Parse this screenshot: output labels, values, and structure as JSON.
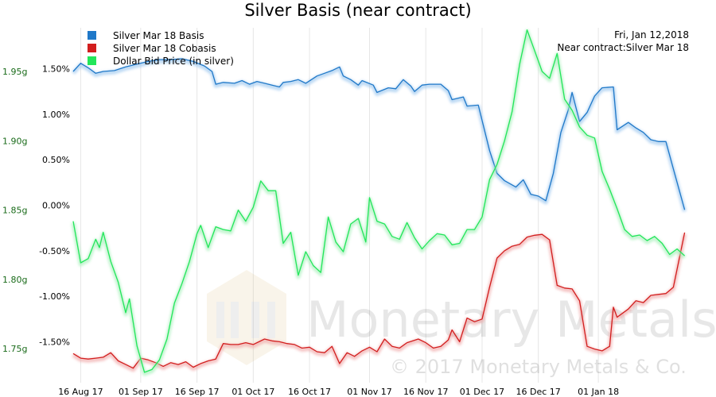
{
  "chart_data": {
    "type": "line",
    "title": "Silver Basis (near contract)",
    "xlabel": "",
    "ylabel_left": "",
    "ylabel_right": "",
    "x_start": "2017-08-14",
    "x_end": "2018-01-26",
    "x_ticks": [
      {
        "date": "2017-08-16",
        "label": "16 Aug 17"
      },
      {
        "date": "2017-09-01",
        "label": "01 Sep 17"
      },
      {
        "date": "2017-09-16",
        "label": "16 Sep 17"
      },
      {
        "date": "2017-10-01",
        "label": "01 Oct 17"
      },
      {
        "date": "2017-10-16",
        "label": "16 Oct 17"
      },
      {
        "date": "2017-11-01",
        "label": "01 Nov 17"
      },
      {
        "date": "2017-11-16",
        "label": "16 Nov 17"
      },
      {
        "date": "2017-12-01",
        "label": "01 Dec 17"
      },
      {
        "date": "2017-12-16",
        "label": "16 Dec 17"
      },
      {
        "date": "2018-01-01",
        "label": "01 Jan 18"
      }
    ],
    "y_left": {
      "range": [
        1.7255,
        1.9815
      ],
      "ticks": [
        {
          "value": 1.75,
          "label": "1.75g"
        },
        {
          "value": 1.8,
          "label": "1.80g"
        },
        {
          "value": 1.85,
          "label": "1.85g"
        },
        {
          "value": 1.9,
          "label": "1.90g"
        },
        {
          "value": 1.95,
          "label": "1.95g"
        }
      ]
    },
    "y_right": {
      "range": [
        -1.95,
        1.95
      ],
      "ticks": [
        {
          "value": 1.5,
          "label": "1.50%"
        },
        {
          "value": 1.0,
          "label": "1.00%"
        },
        {
          "value": 0.5,
          "label": "0.50%"
        },
        {
          "value": 0.0,
          "label": "0.00%"
        },
        {
          "value": -0.5,
          "label": "-0.50%"
        },
        {
          "value": -1.0,
          "label": "-1.00%"
        },
        {
          "value": -1.5,
          "label": "-1.50%"
        }
      ]
    },
    "grid": "vertical",
    "legend_position": "top-left",
    "info_lines": [
      "Fri, Jan 12,2018",
      "Near contract:Silver Mar 18"
    ],
    "watermark": [
      "Monetary Metals",
      "© 2017 Monetary Metals & Co."
    ],
    "series": [
      {
        "name": "Silver Mar 18 Basis",
        "axis": "right",
        "color": "#1f78c8",
        "points": [
          [
            "2017-08-14",
            1.47
          ],
          [
            "2017-08-16",
            1.56
          ],
          [
            "2017-08-18",
            1.51
          ],
          [
            "2017-08-20",
            1.45
          ],
          [
            "2017-08-22",
            1.47
          ],
          [
            "2017-08-25",
            1.48
          ],
          [
            "2017-08-28",
            1.52
          ],
          [
            "2017-08-31",
            1.55
          ],
          [
            "2017-09-03",
            1.58
          ],
          [
            "2017-09-06",
            1.6
          ],
          [
            "2017-09-09",
            1.6
          ],
          [
            "2017-09-12",
            1.61
          ],
          [
            "2017-09-15",
            1.58
          ],
          [
            "2017-09-18",
            1.53
          ],
          [
            "2017-09-20",
            1.47
          ],
          [
            "2017-09-21",
            1.33
          ],
          [
            "2017-09-23",
            1.35
          ],
          [
            "2017-09-26",
            1.34
          ],
          [
            "2017-09-28",
            1.37
          ],
          [
            "2017-09-30",
            1.33
          ],
          [
            "2017-10-02",
            1.36
          ],
          [
            "2017-10-04",
            1.34
          ],
          [
            "2017-10-06",
            1.32
          ],
          [
            "2017-10-08",
            1.3
          ],
          [
            "2017-10-09",
            1.35
          ],
          [
            "2017-10-11",
            1.36
          ],
          [
            "2017-10-13",
            1.38
          ],
          [
            "2017-10-15",
            1.34
          ],
          [
            "2017-10-18",
            1.42
          ],
          [
            "2017-10-20",
            1.45
          ],
          [
            "2017-10-22",
            1.48
          ],
          [
            "2017-10-24",
            1.52
          ],
          [
            "2017-10-25",
            1.42
          ],
          [
            "2017-10-27",
            1.38
          ],
          [
            "2017-10-29",
            1.32
          ],
          [
            "2017-10-30",
            1.37
          ],
          [
            "2017-11-02",
            1.32
          ],
          [
            "2017-11-03",
            1.24
          ],
          [
            "2017-11-06",
            1.29
          ],
          [
            "2017-11-08",
            1.28
          ],
          [
            "2017-11-10",
            1.38
          ],
          [
            "2017-11-12",
            1.31
          ],
          [
            "2017-11-13",
            1.25
          ],
          [
            "2017-11-15",
            1.32
          ],
          [
            "2017-11-17",
            1.33
          ],
          [
            "2017-11-20",
            1.33
          ],
          [
            "2017-11-22",
            1.26
          ],
          [
            "2017-11-23",
            1.16
          ],
          [
            "2017-11-26",
            1.19
          ],
          [
            "2017-11-27",
            1.09
          ],
          [
            "2017-11-30",
            1.1
          ],
          [
            "2017-12-03",
            0.6
          ],
          [
            "2017-12-05",
            0.35
          ],
          [
            "2017-12-07",
            0.27
          ],
          [
            "2017-12-10",
            0.2
          ],
          [
            "2017-12-12",
            0.28
          ],
          [
            "2017-12-14",
            0.12
          ],
          [
            "2017-12-16",
            0.1
          ],
          [
            "2017-12-18",
            0.05
          ],
          [
            "2017-12-20",
            0.35
          ],
          [
            "2017-12-22",
            0.8
          ],
          [
            "2017-12-24",
            1.05
          ],
          [
            "2017-12-25",
            1.24
          ],
          [
            "2017-12-27",
            0.92
          ],
          [
            "2017-12-29",
            1.02
          ],
          [
            "2017-12-31",
            1.2
          ],
          [
            "2018-01-02",
            1.29
          ],
          [
            "2018-01-05",
            1.3
          ],
          [
            "2018-01-06",
            0.83
          ],
          [
            "2018-01-09",
            0.91
          ],
          [
            "2018-01-11",
            0.85
          ],
          [
            "2018-01-13",
            0.8
          ],
          [
            "2018-01-15",
            0.72
          ],
          [
            "2018-01-17",
            0.7
          ],
          [
            "2018-01-19",
            0.7
          ],
          [
            "2018-01-21",
            0.4
          ],
          [
            "2018-01-24",
            -0.05
          ]
        ]
      },
      {
        "name": "Silver Mar 18 Cobasis",
        "axis": "right",
        "color": "#d21e1e",
        "points": [
          [
            "2017-08-14",
            -1.63
          ],
          [
            "2017-08-16",
            -1.68
          ],
          [
            "2017-08-18",
            -1.69
          ],
          [
            "2017-08-20",
            -1.68
          ],
          [
            "2017-08-22",
            -1.67
          ],
          [
            "2017-08-24",
            -1.62
          ],
          [
            "2017-08-26",
            -1.71
          ],
          [
            "2017-08-28",
            -1.75
          ],
          [
            "2017-08-30",
            -1.79
          ],
          [
            "2017-09-01",
            -1.68
          ],
          [
            "2017-09-03",
            -1.7
          ],
          [
            "2017-09-05",
            -1.73
          ],
          [
            "2017-09-07",
            -1.77
          ],
          [
            "2017-09-09",
            -1.73
          ],
          [
            "2017-09-11",
            -1.75
          ],
          [
            "2017-09-13",
            -1.72
          ],
          [
            "2017-09-15",
            -1.78
          ],
          [
            "2017-09-17",
            -1.74
          ],
          [
            "2017-09-19",
            -1.71
          ],
          [
            "2017-09-21",
            -1.69
          ],
          [
            "2017-09-23",
            -1.52
          ],
          [
            "2017-09-25",
            -1.53
          ],
          [
            "2017-09-27",
            -1.53
          ],
          [
            "2017-09-29",
            -1.51
          ],
          [
            "2017-10-01",
            -1.53
          ],
          [
            "2017-10-04",
            -1.47
          ],
          [
            "2017-10-06",
            -1.49
          ],
          [
            "2017-10-08",
            -1.5
          ],
          [
            "2017-10-10",
            -1.52
          ],
          [
            "2017-10-12",
            -1.53
          ],
          [
            "2017-10-14",
            -1.57
          ],
          [
            "2017-10-16",
            -1.56
          ],
          [
            "2017-10-18",
            -1.61
          ],
          [
            "2017-10-20",
            -1.62
          ],
          [
            "2017-10-22",
            -1.55
          ],
          [
            "2017-10-24",
            -1.74
          ],
          [
            "2017-10-26",
            -1.62
          ],
          [
            "2017-10-28",
            -1.66
          ],
          [
            "2017-10-30",
            -1.6
          ],
          [
            "2017-11-01",
            -1.56
          ],
          [
            "2017-11-03",
            -1.61
          ],
          [
            "2017-11-05",
            -1.47
          ],
          [
            "2017-11-07",
            -1.55
          ],
          [
            "2017-11-09",
            -1.57
          ],
          [
            "2017-11-11",
            -1.51
          ],
          [
            "2017-11-14",
            -1.47
          ],
          [
            "2017-11-16",
            -1.51
          ],
          [
            "2017-11-18",
            -1.57
          ],
          [
            "2017-11-20",
            -1.55
          ],
          [
            "2017-11-22",
            -1.48
          ],
          [
            "2017-11-23",
            -1.37
          ],
          [
            "2017-11-25",
            -1.5
          ],
          [
            "2017-11-27",
            -1.24
          ],
          [
            "2017-11-29",
            -1.28
          ],
          [
            "2017-12-01",
            -1.25
          ],
          [
            "2017-12-03",
            -0.9
          ],
          [
            "2017-12-05",
            -0.58
          ],
          [
            "2017-12-07",
            -0.5
          ],
          [
            "2017-12-09",
            -0.45
          ],
          [
            "2017-12-11",
            -0.43
          ],
          [
            "2017-12-13",
            -0.35
          ],
          [
            "2017-12-15",
            -0.33
          ],
          [
            "2017-12-17",
            -0.32
          ],
          [
            "2017-12-19",
            -0.38
          ],
          [
            "2017-12-21",
            -0.88
          ],
          [
            "2017-12-23",
            -0.91
          ],
          [
            "2017-12-25",
            -0.92
          ],
          [
            "2017-12-27",
            -1.05
          ],
          [
            "2017-12-29",
            -1.55
          ],
          [
            "2017-12-31",
            -1.58
          ],
          [
            "2018-01-02",
            -1.6
          ],
          [
            "2018-01-04",
            -1.55
          ],
          [
            "2018-01-05",
            -1.12
          ],
          [
            "2018-01-06",
            -1.23
          ],
          [
            "2018-01-09",
            -1.14
          ],
          [
            "2018-01-11",
            -1.05
          ],
          [
            "2018-01-13",
            -1.07
          ],
          [
            "2018-01-15",
            -0.99
          ],
          [
            "2018-01-17",
            -0.98
          ],
          [
            "2018-01-19",
            -0.97
          ],
          [
            "2018-01-21",
            -0.9
          ],
          [
            "2018-01-24",
            -0.3
          ]
        ]
      },
      {
        "name": "Dollar Bid Price (in silver)",
        "axis": "left",
        "color": "#22e65a",
        "points": [
          [
            "2017-08-14",
            1.842
          ],
          [
            "2017-08-16",
            1.812
          ],
          [
            "2017-08-18",
            1.815
          ],
          [
            "2017-08-20",
            1.829
          ],
          [
            "2017-08-21",
            1.823
          ],
          [
            "2017-08-22",
            1.834
          ],
          [
            "2017-08-24",
            1.813
          ],
          [
            "2017-08-26",
            1.798
          ],
          [
            "2017-08-28",
            1.776
          ],
          [
            "2017-08-29",
            1.786
          ],
          [
            "2017-08-31",
            1.752
          ],
          [
            "2017-09-02",
            1.733
          ],
          [
            "2017-09-04",
            1.735
          ],
          [
            "2017-09-06",
            1.742
          ],
          [
            "2017-09-08",
            1.757
          ],
          [
            "2017-09-10",
            1.783
          ],
          [
            "2017-09-12",
            1.797
          ],
          [
            "2017-09-14",
            1.813
          ],
          [
            "2017-09-16",
            1.833
          ],
          [
            "2017-09-17",
            1.839
          ],
          [
            "2017-09-19",
            1.823
          ],
          [
            "2017-09-21",
            1.838
          ],
          [
            "2017-09-23",
            1.836
          ],
          [
            "2017-09-25",
            1.835
          ],
          [
            "2017-09-27",
            1.85
          ],
          [
            "2017-09-29",
            1.842
          ],
          [
            "2017-10-01",
            1.852
          ],
          [
            "2017-10-03",
            1.871
          ],
          [
            "2017-10-05",
            1.864
          ],
          [
            "2017-10-07",
            1.864
          ],
          [
            "2017-10-09",
            1.826
          ],
          [
            "2017-10-11",
            1.834
          ],
          [
            "2017-10-13",
            1.803
          ],
          [
            "2017-10-15",
            1.82
          ],
          [
            "2017-10-17",
            1.81
          ],
          [
            "2017-10-19",
            1.805
          ],
          [
            "2017-10-21",
            1.845
          ],
          [
            "2017-10-23",
            1.827
          ],
          [
            "2017-10-25",
            1.82
          ],
          [
            "2017-10-27",
            1.84
          ],
          [
            "2017-10-29",
            1.844
          ],
          [
            "2017-10-31",
            1.827
          ],
          [
            "2017-11-01",
            1.859
          ],
          [
            "2017-11-03",
            1.842
          ],
          [
            "2017-11-05",
            1.84
          ],
          [
            "2017-11-07",
            1.831
          ],
          [
            "2017-11-09",
            1.829
          ],
          [
            "2017-11-11",
            1.841
          ],
          [
            "2017-11-13",
            1.83
          ],
          [
            "2017-11-15",
            1.822
          ],
          [
            "2017-11-17",
            1.828
          ],
          [
            "2017-11-19",
            1.833
          ],
          [
            "2017-11-21",
            1.832
          ],
          [
            "2017-11-23",
            1.825
          ],
          [
            "2017-11-25",
            1.826
          ],
          [
            "2017-11-27",
            1.836
          ],
          [
            "2017-11-29",
            1.836
          ],
          [
            "2017-12-01",
            1.845
          ],
          [
            "2017-12-03",
            1.872
          ],
          [
            "2017-12-05",
            1.883
          ],
          [
            "2017-12-07",
            1.9
          ],
          [
            "2017-12-09",
            1.921
          ],
          [
            "2017-12-11",
            1.955
          ],
          [
            "2017-12-13",
            1.98
          ],
          [
            "2017-12-15",
            1.965
          ],
          [
            "2017-12-17",
            1.95
          ],
          [
            "2017-12-19",
            1.945
          ],
          [
            "2017-12-21",
            1.963
          ],
          [
            "2017-12-23",
            1.93
          ],
          [
            "2017-12-25",
            1.922
          ],
          [
            "2017-12-27",
            1.91
          ],
          [
            "2017-12-29",
            1.904
          ],
          [
            "2017-12-31",
            1.902
          ],
          [
            "2018-01-02",
            1.878
          ],
          [
            "2018-01-04",
            1.865
          ],
          [
            "2018-01-06",
            1.851
          ],
          [
            "2018-01-08",
            1.836
          ],
          [
            "2018-01-10",
            1.831
          ],
          [
            "2018-01-12",
            1.832
          ],
          [
            "2018-01-14",
            1.828
          ],
          [
            "2018-01-16",
            1.831
          ],
          [
            "2018-01-18",
            1.826
          ],
          [
            "2018-01-20",
            1.818
          ],
          [
            "2018-01-22",
            1.822
          ],
          [
            "2018-01-24",
            1.817
          ]
        ]
      }
    ]
  }
}
